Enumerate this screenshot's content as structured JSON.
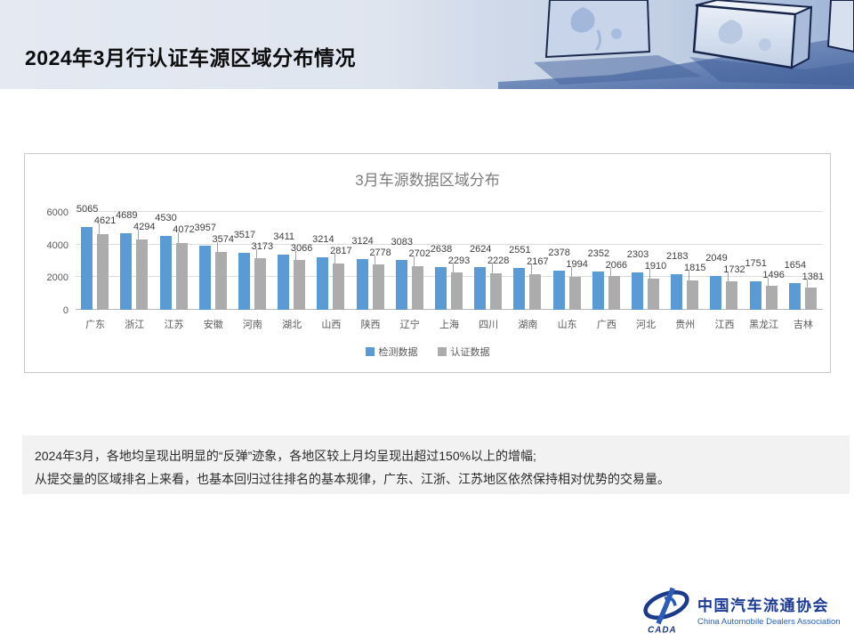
{
  "header": {
    "title": "2024年3月行认证车源区域分布情况"
  },
  "chart_data": {
    "type": "bar",
    "title": "3月车源数据区域分布",
    "categories": [
      "广东",
      "浙江",
      "江苏",
      "安徽",
      "河南",
      "湖北",
      "山西",
      "陕西",
      "辽宁",
      "上海",
      "四川",
      "湖南",
      "山东",
      "广西",
      "河北",
      "贵州",
      "江西",
      "黑龙江",
      "吉林"
    ],
    "series": [
      {
        "name": "检测数据",
        "color": "#5B9BD5",
        "values": [
          5065,
          4689,
          4530,
          3957,
          3517,
          3411,
          3214,
          3124,
          3083,
          2638,
          2624,
          2551,
          2378,
          2352,
          2303,
          2183,
          2049,
          1751,
          1654
        ]
      },
      {
        "name": "认证数据",
        "color": "#ACACAC",
        "values": [
          4621,
          4294,
          4072,
          3574,
          3173,
          3066,
          2817,
          2778,
          2702,
          2293,
          2228,
          2167,
          1994,
          2066,
          1910,
          1815,
          1732,
          1496,
          1381
        ]
      }
    ],
    "ylim": [
      0,
      6000
    ],
    "yticks": [
      0,
      2000,
      4000,
      6000
    ],
    "grid": true,
    "legend_position": "bottom"
  },
  "summary": {
    "line1": "2024年3月，各地均呈现出明显的“反弹”迹象，各地区较上月均呈现出超过150%以上的增幅;",
    "line2": "从提交量的区域排名上来看，也基本回归过往排名的基本规律，广东、江浙、江苏地区依然保持相对优势的交易量。"
  },
  "footer": {
    "logo_acronym": "CADA",
    "org_name_cn": "中国汽车流通协会",
    "org_name_en": "China Automobile Dealers Association"
  },
  "colors": {
    "series_blue": "#5B9BD5",
    "series_gray": "#ACACAC",
    "logo_blue": "#1B3A8C"
  }
}
